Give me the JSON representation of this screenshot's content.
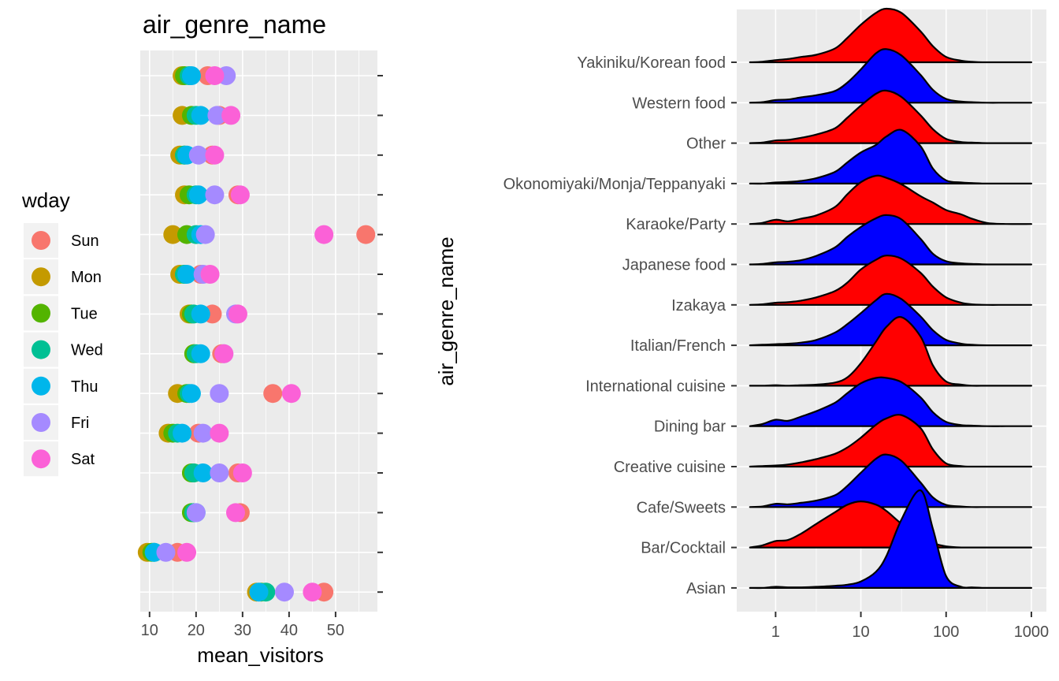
{
  "chart_data": [
    {
      "type": "scatter",
      "title": "air_genre_name",
      "xlabel": "mean_visitors",
      "ylabel": "",
      "xlim": [
        8,
        59
      ],
      "xticks": [
        10,
        20,
        30,
        40,
        50
      ],
      "grid": true,
      "y_tick_labels_shown": false,
      "legend": {
        "title": "wday",
        "position": "left",
        "entries": [
          {
            "name": "Sun",
            "color": "#F8766D"
          },
          {
            "name": "Mon",
            "color": "#C49A00"
          },
          {
            "name": "Tue",
            "color": "#53B400"
          },
          {
            "name": "Wed",
            "color": "#00C094"
          },
          {
            "name": "Thu",
            "color": "#00B6EB"
          },
          {
            "name": "Fri",
            "color": "#A58AFF"
          },
          {
            "name": "Sat",
            "color": "#FB61D7"
          }
        ]
      },
      "categories": [
        "Asian",
        "Bar/Cocktail",
        "Cafe/Sweets",
        "Creative cuisine",
        "Dining bar",
        "International cuisine",
        "Italian/French",
        "Izakaya",
        "Japanese food",
        "Karaoke/Party",
        "Okonomiyaki/Monja/Teppanyaki",
        "Other",
        "Western food",
        "Yakiniku/Korean food"
      ],
      "series": [
        {
          "name": "Sun",
          "values": [
            47.5,
            16,
            29.5,
            29,
            20.5,
            36.5,
            25.5,
            23.5,
            21,
            56.5,
            29,
            23.5,
            25,
            22.5
          ]
        },
        {
          "name": "Mon",
          "values": [
            33,
            9.5,
            19.5,
            19.5,
            14,
            16,
            19.5,
            18.5,
            16.5,
            15,
            17.5,
            16.5,
            17,
            17
          ]
        },
        {
          "name": "Tue",
          "values": [
            34,
            10.5,
            19,
            19,
            15,
            18,
            19.5,
            19,
            17.5,
            18,
            18.5,
            17.5,
            19,
            17.5
          ]
        },
        {
          "name": "Wed",
          "values": [
            35,
            11,
            19.5,
            19.5,
            16,
            18.5,
            20,
            19.5,
            17.5,
            20,
            20,
            17.5,
            20,
            18.5
          ]
        },
        {
          "name": "Thu",
          "values": [
            33.5,
            11,
            20,
            21.5,
            17,
            19,
            21,
            21,
            18,
            21,
            20.5,
            18,
            21,
            19
          ]
        },
        {
          "name": "Fri",
          "values": [
            39,
            13.5,
            20,
            25,
            21.5,
            25,
            26,
            28.5,
            21.5,
            22,
            24,
            20.5,
            24.5,
            26.5
          ]
        },
        {
          "name": "Sat",
          "values": [
            45,
            18,
            28.5,
            30,
            25,
            40.5,
            26,
            29,
            23,
            47.5,
            29.5,
            24,
            27.5,
            24
          ]
        }
      ]
    },
    {
      "type": "area",
      "subtype": "ridgeline",
      "xlabel": "",
      "ylabel": "air_genre_name",
      "x_scale": "log10",
      "xlim": [
        0.5,
        1000
      ],
      "xticks": [
        1,
        10,
        100,
        1000
      ],
      "grid": true,
      "categories": [
        "Yakiniku/Korean food",
        "Western food",
        "Other",
        "Okonomiyaki/Monja/Teppanyaki",
        "Karaoke/Party",
        "Japanese food",
        "Izakaya",
        "Italian/French",
        "International cuisine",
        "Dining bar",
        "Creative cuisine",
        "Cafe/Sweets",
        "Bar/Cocktail",
        "Asian"
      ],
      "fill_colors": [
        "#FF0000",
        "#0000FF",
        "#FF0000",
        "#0000FF",
        "#FF0000",
        "#0000FF",
        "#FF0000",
        "#0000FF",
        "#FF0000",
        "#0000FF",
        "#FF0000",
        "#0000FF",
        "#FF0000",
        "#0000FF"
      ],
      "density_x": [
        0.5,
        0.7,
        1,
        1.4,
        2,
        3,
        5,
        7,
        10,
        15,
        20,
        30,
        50,
        70,
        100,
        150,
        200,
        300,
        500,
        1000
      ],
      "density_y": [
        [
          0.0,
          0.01,
          0.04,
          0.06,
          0.1,
          0.14,
          0.26,
          0.46,
          0.7,
          0.92,
          1.0,
          0.92,
          0.58,
          0.3,
          0.1,
          0.03,
          0.01,
          0.0,
          0.0,
          0.0
        ],
        [
          0.0,
          0.01,
          0.05,
          0.06,
          0.1,
          0.14,
          0.22,
          0.38,
          0.62,
          0.92,
          1.0,
          0.88,
          0.52,
          0.24,
          0.07,
          0.02,
          0.01,
          0.0,
          0.0,
          0.0
        ],
        [
          0.0,
          0.01,
          0.05,
          0.06,
          0.1,
          0.16,
          0.28,
          0.48,
          0.7,
          0.92,
          0.98,
          0.86,
          0.52,
          0.26,
          0.08,
          0.02,
          0.01,
          0.0,
          0.0,
          0.0
        ],
        [
          0.0,
          0.0,
          0.02,
          0.03,
          0.05,
          0.1,
          0.22,
          0.4,
          0.58,
          0.72,
          0.88,
          1.0,
          0.7,
          0.28,
          0.06,
          0.02,
          0.01,
          0.0,
          0.0,
          0.0
        ],
        [
          0.0,
          0.02,
          0.08,
          0.05,
          0.1,
          0.16,
          0.32,
          0.56,
          0.78,
          0.9,
          0.86,
          0.74,
          0.52,
          0.4,
          0.26,
          0.18,
          0.1,
          0.02,
          0.0,
          0.0
        ],
        [
          0.0,
          0.01,
          0.04,
          0.05,
          0.08,
          0.16,
          0.32,
          0.52,
          0.7,
          0.86,
          0.92,
          0.84,
          0.48,
          0.2,
          0.06,
          0.02,
          0.01,
          0.0,
          0.0,
          0.0
        ],
        [
          0.0,
          0.01,
          0.04,
          0.05,
          0.08,
          0.14,
          0.26,
          0.42,
          0.66,
          0.84,
          0.92,
          0.86,
          0.6,
          0.34,
          0.14,
          0.04,
          0.01,
          0.0,
          0.0,
          0.0
        ],
        [
          0.0,
          0.01,
          0.02,
          0.03,
          0.05,
          0.1,
          0.24,
          0.4,
          0.6,
          0.84,
          0.96,
          0.86,
          0.54,
          0.28,
          0.1,
          0.03,
          0.01,
          0.0,
          0.0,
          0.0
        ],
        [
          0.0,
          0.0,
          0.01,
          0.0,
          0.01,
          0.02,
          0.06,
          0.16,
          0.42,
          0.82,
          1.1,
          1.28,
          0.92,
          0.38,
          0.08,
          0.02,
          0.0,
          0.0,
          0.0,
          0.0
        ],
        [
          0.0,
          0.04,
          0.12,
          0.1,
          0.18,
          0.28,
          0.44,
          0.62,
          0.8,
          0.9,
          0.9,
          0.82,
          0.54,
          0.26,
          0.08,
          0.02,
          0.01,
          0.0,
          0.0,
          0.0
        ],
        [
          0.0,
          0.01,
          0.02,
          0.04,
          0.08,
          0.14,
          0.24,
          0.36,
          0.54,
          0.78,
          0.9,
          0.96,
          0.72,
          0.32,
          0.06,
          0.01,
          0.0,
          0.0,
          0.0,
          0.0
        ],
        [
          0.0,
          0.01,
          0.06,
          0.05,
          0.08,
          0.12,
          0.22,
          0.4,
          0.64,
          0.9,
          0.98,
          0.86,
          0.46,
          0.18,
          0.04,
          0.01,
          0.0,
          0.0,
          0.0,
          0.0
        ],
        [
          0.0,
          0.04,
          0.12,
          0.14,
          0.26,
          0.44,
          0.66,
          0.8,
          0.86,
          0.8,
          0.68,
          0.44,
          0.18,
          0.08,
          0.02,
          0.0,
          0.0,
          0.0,
          0.0,
          0.0
        ],
        [
          0.0,
          0.0,
          0.02,
          0.01,
          0.01,
          0.02,
          0.04,
          0.06,
          0.12,
          0.3,
          0.6,
          1.28,
          1.82,
          1.1,
          0.22,
          0.02,
          0.01,
          0.0,
          0.0,
          0.0
        ]
      ]
    }
  ]
}
